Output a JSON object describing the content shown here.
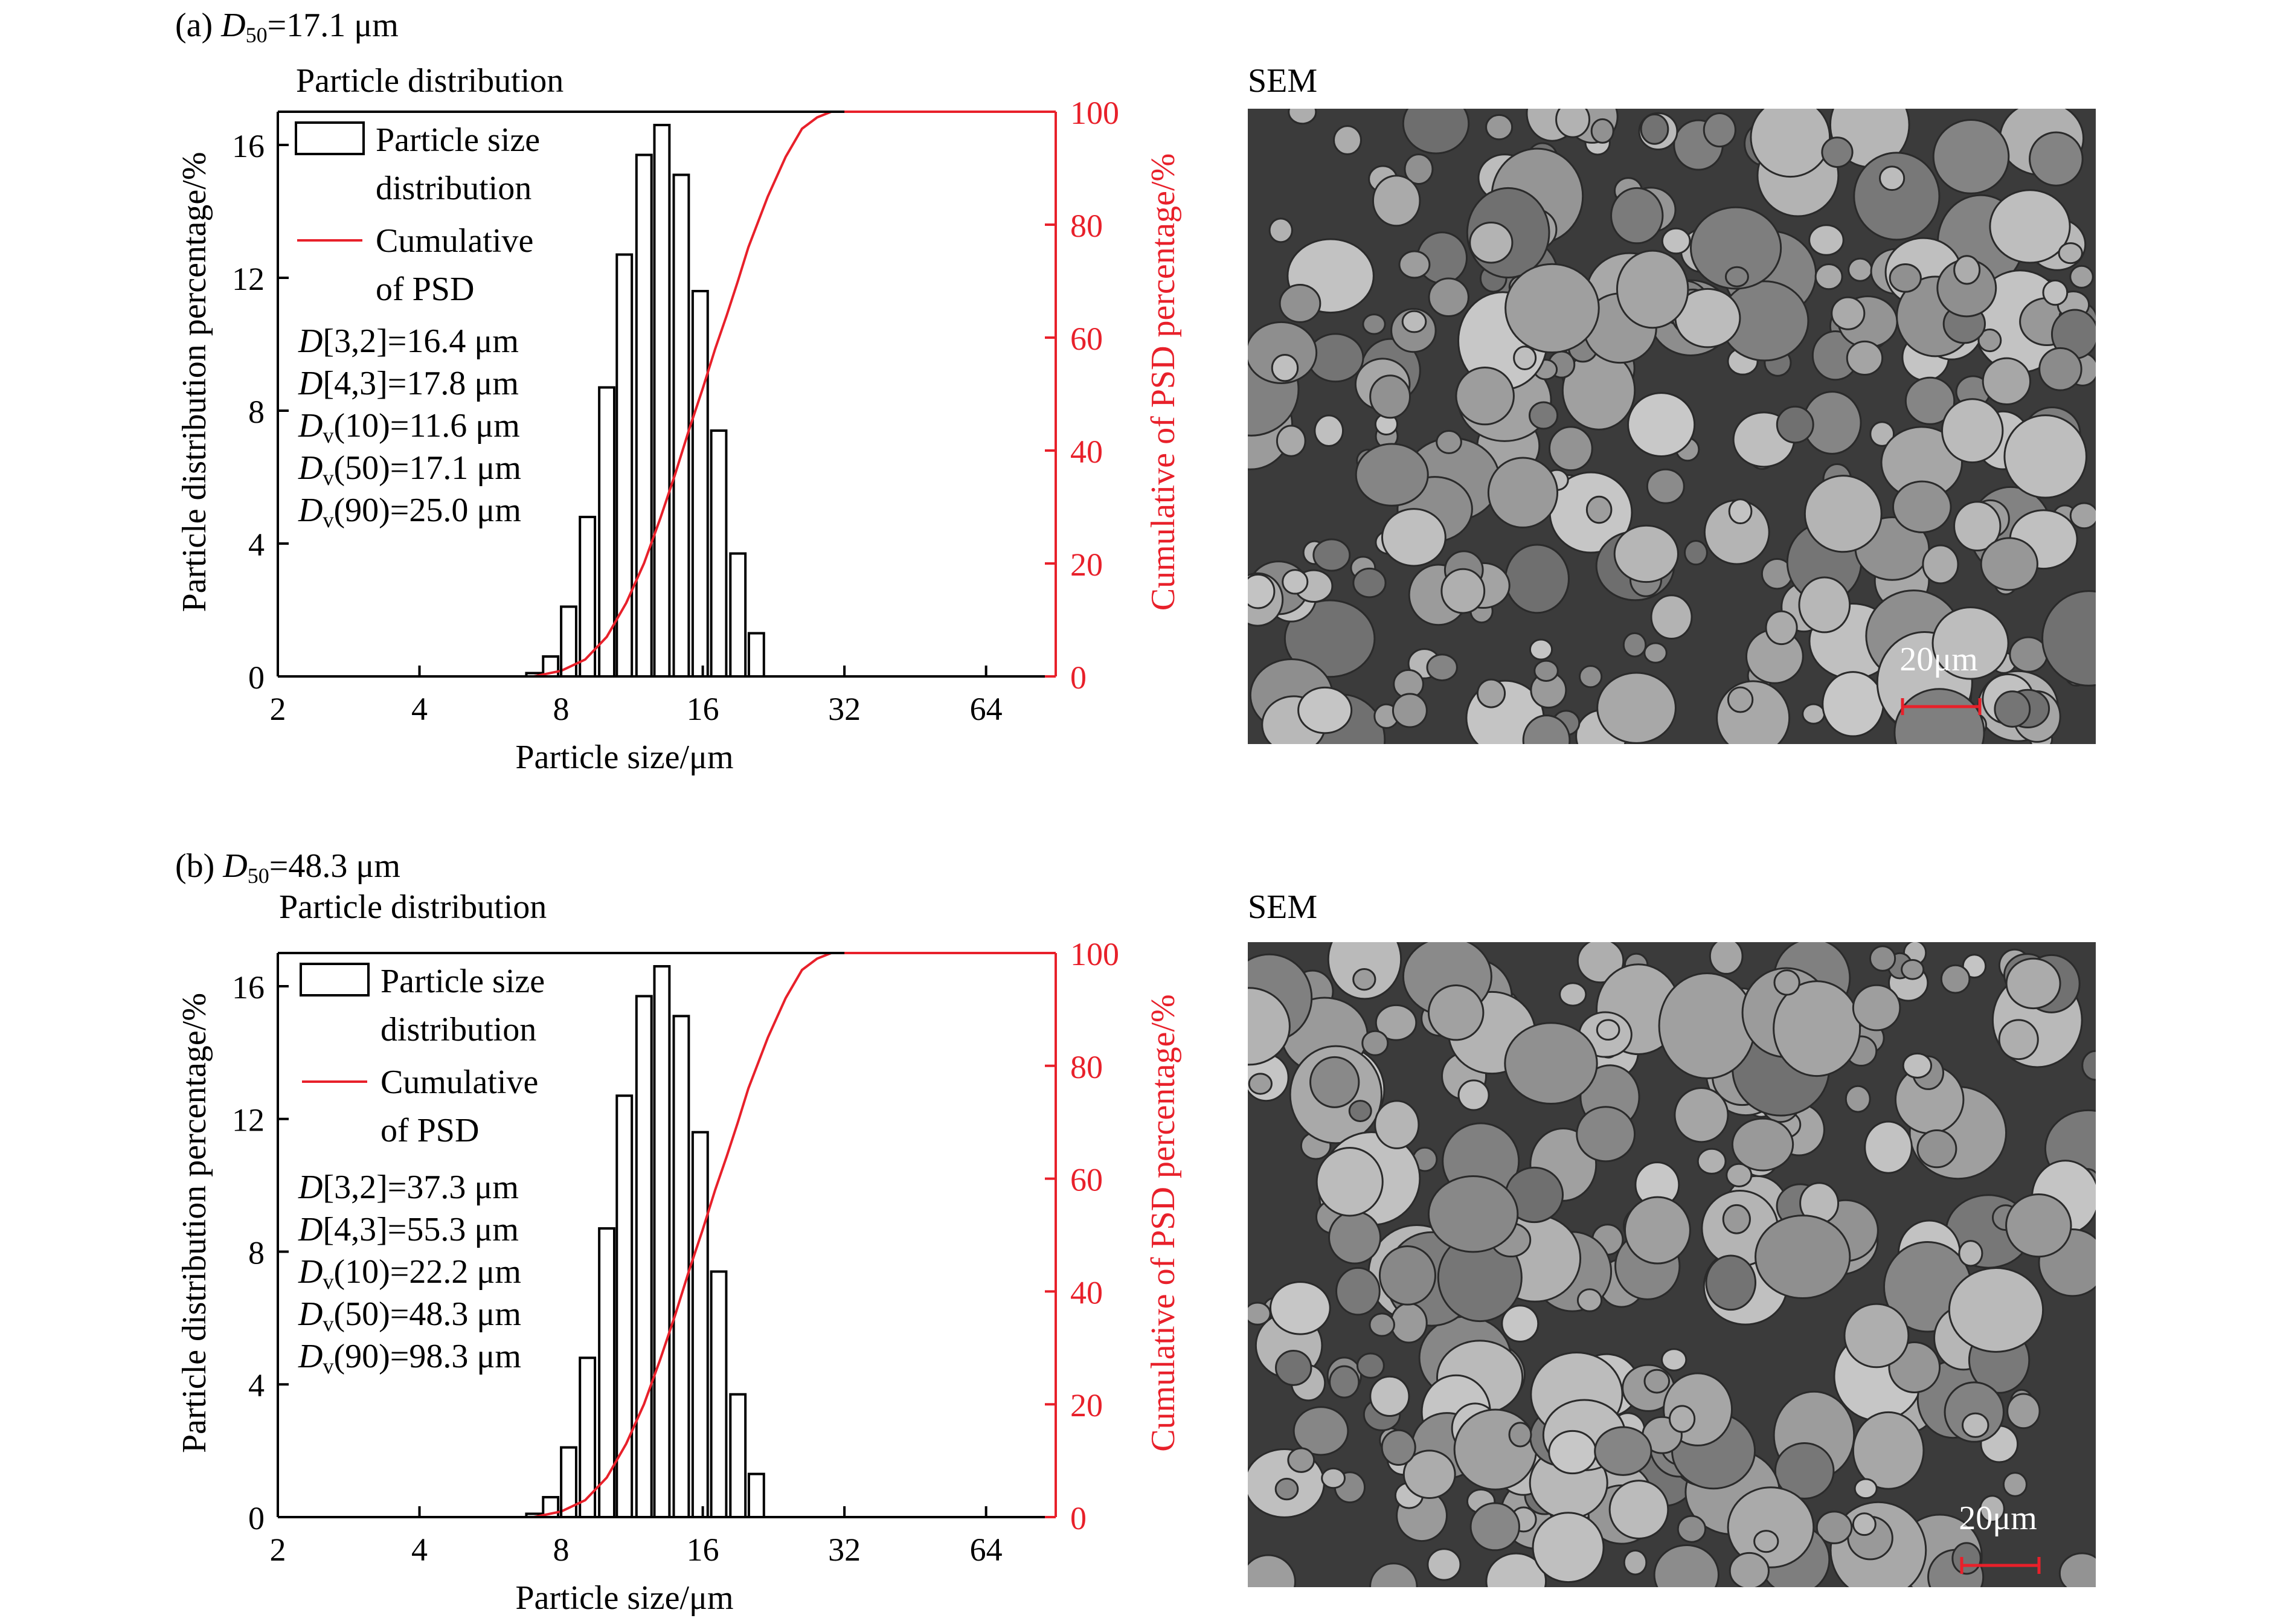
{
  "figure": {
    "panels": [
      {
        "panel_label": "(a)",
        "d50_symbol": "D",
        "d50_subscript": "50",
        "d50_value": "=17.1 μm",
        "chart_title": "Particle distribution",
        "sem_title": "SEM",
        "scale_bar_label": "20μm",
        "stats": [
          {
            "sym": "D",
            "sub": "",
            "text": "[3,2]=16.4 μm"
          },
          {
            "sym": "D",
            "sub": "",
            "text": "[4,3]=17.8 μm"
          },
          {
            "sym": "D",
            "sub": "v",
            "text": "(10)=11.6 μm"
          },
          {
            "sym": "D",
            "sub": "v",
            "text": "(50)=17.1 μm"
          },
          {
            "sym": "D",
            "sub": "v",
            "text": "(90)=25.0 μm"
          }
        ]
      },
      {
        "panel_label": "(b)",
        "d50_symbol": "D",
        "d50_subscript": "50",
        "d50_value": "=48.3 μm",
        "chart_title": "Particle distribution",
        "sem_title": "SEM",
        "scale_bar_label": "20μm",
        "stats": [
          {
            "sym": "D",
            "sub": "",
            "text": "[3,2]=37.3 μm"
          },
          {
            "sym": "D",
            "sub": "",
            "text": "[4,3]=55.3 μm"
          },
          {
            "sym": "D",
            "sub": "v",
            "text": "(10)=22.2 μm"
          },
          {
            "sym": "D",
            "sub": "v",
            "text": "(50)=48.3 μm"
          },
          {
            "sym": "D",
            "sub": "v",
            "text": "(90)=98.3 μm"
          }
        ]
      }
    ]
  },
  "colors": {
    "bars": "#000000",
    "cumulative": "#e8202a",
    "sem_background": "#3b3b3b",
    "scale_bar": "#e8202a"
  },
  "chart_data": [
    {
      "type": "bar",
      "xscale": "log2",
      "xlim": [
        2,
        90
      ],
      "xticks": [
        2,
        4,
        8,
        16,
        32,
        64
      ],
      "xlabel": "Particle size/μm",
      "ylabel": "Particle distribution percentage/%",
      "ylim": [
        0,
        17
      ],
      "yticks": [
        0,
        4,
        8,
        12,
        16
      ],
      "y2label": "Cumulative of PSD percentage/%",
      "y2lim": [
        0,
        100
      ],
      "y2ticks": [
        0,
        20,
        40,
        60,
        80,
        100
      ],
      "legend": [
        "Particle size distribution",
        "Cumulative of PSD"
      ],
      "legend_labels": [
        "Particle size",
        "distribution",
        "Cumulative",
        "of PSD"
      ],
      "legend_position": "top-left",
      "bars": {
        "x": [
          7.0,
          7.6,
          8.3,
          9.1,
          10.0,
          10.9,
          12.0,
          13.1,
          14.4,
          15.8,
          17.3,
          19.0,
          20.8,
          22.8,
          25.0,
          27.4,
          30.1
        ],
        "y": [
          0.1,
          0.6,
          2.1,
          4.8,
          8.7,
          12.7,
          15.7,
          16.6,
          15.1,
          11.6,
          7.4,
          3.7,
          1.3,
          0,
          0,
          0,
          0
        ]
      },
      "cumulative": {
        "x": [
          2,
          7,
          8,
          9,
          10,
          11,
          12,
          13,
          14,
          15,
          16,
          17,
          18,
          19,
          20,
          22,
          24,
          26,
          28,
          30,
          32,
          90
        ],
        "y": [
          0,
          0,
          1,
          3,
          7,
          13,
          20,
          28,
          36,
          44,
          51,
          58,
          64,
          70,
          76,
          85,
          92,
          97,
          99,
          100,
          100,
          100
        ]
      }
    },
    {
      "type": "bar",
      "xscale": "log2",
      "xlim": [
        2,
        90
      ],
      "xticks": [
        2,
        4,
        8,
        16,
        32,
        64
      ],
      "xlabel": "Particle size/μm",
      "ylabel": "Particle distribution percentage/%",
      "ylim": [
        0,
        17
      ],
      "yticks": [
        0,
        4,
        8,
        12,
        16
      ],
      "y2label": "Cumulative of PSD percentage/%",
      "y2lim": [
        0,
        100
      ],
      "y2ticks": [
        0,
        20,
        40,
        60,
        80,
        100
      ],
      "legend": [
        "Particle size distribution",
        "Cumulative of PSD"
      ],
      "legend_labels": [
        "Particle size",
        "distribution",
        "Cumulative",
        "of PSD"
      ],
      "legend_position": "top-left",
      "bars": {
        "x": [
          7.0,
          7.6,
          8.3,
          9.1,
          10.0,
          10.9,
          12.0,
          13.1,
          14.4,
          15.8,
          17.3,
          19.0,
          20.8,
          22.8,
          25.0,
          27.4,
          30.1
        ],
        "y": [
          0.1,
          0.6,
          2.1,
          4.8,
          8.7,
          12.7,
          15.7,
          16.6,
          15.1,
          11.6,
          7.4,
          3.7,
          1.3,
          0,
          0,
          0,
          0
        ]
      },
      "cumulative": {
        "x": [
          2,
          7,
          8,
          9,
          10,
          11,
          12,
          13,
          14,
          15,
          16,
          17,
          18,
          19,
          20,
          22,
          24,
          26,
          28,
          30,
          32,
          90
        ],
        "y": [
          0,
          0,
          1,
          3,
          7,
          13,
          20,
          28,
          36,
          44,
          51,
          58,
          64,
          70,
          76,
          85,
          92,
          97,
          99,
          100,
          100,
          100
        ]
      }
    }
  ]
}
